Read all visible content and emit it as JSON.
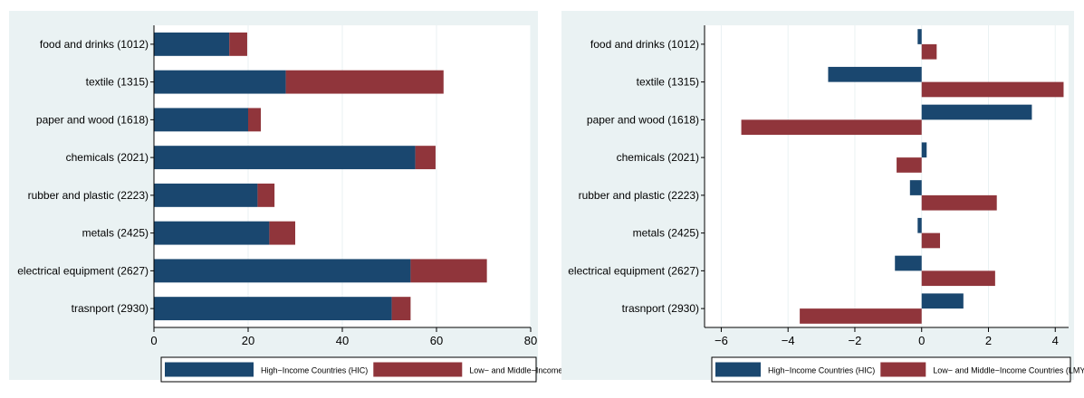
{
  "chart_data": [
    {
      "type": "bar",
      "orientation": "horizontal",
      "stacked": true,
      "categories": [
        "food and drinks (1012)",
        "textile (1315)",
        "paper and wood (1618)",
        "chemicals (2021)",
        "rubber and plastic (2223)",
        "metals (2425)",
        "electrical equipment (2627)",
        "trasnport (2930)"
      ],
      "series": [
        {
          "name": "High−Income Countries (HIC)",
          "color": "#1a476f",
          "values": [
            16,
            28,
            20,
            55.5,
            22,
            24.5,
            54.5,
            50.5
          ]
        },
        {
          "name": "Low− and Middle−Income Countries (LMY)",
          "color": "#90353b",
          "values": [
            3.8,
            33.5,
            2.7,
            4.3,
            3.6,
            5.5,
            16.2,
            4.0
          ]
        }
      ],
      "xlim": [
        0,
        80
      ],
      "xticks": [
        0,
        20,
        40,
        60,
        80
      ],
      "xtick_labels": [
        "0",
        "20",
        "40",
        "60",
        "80"
      ],
      "grid": true,
      "legend": "bottom"
    },
    {
      "type": "bar",
      "orientation": "horizontal",
      "grouped": true,
      "categories": [
        "food and drinks (1012)",
        "textile (1315)",
        "paper and wood (1618)",
        "chemicals (2021)",
        "rubber and plastic (2223)",
        "metals (2425)",
        "electrical equipment (2627)",
        "trasnport (2930)"
      ],
      "series": [
        {
          "name": "High−Income Countries (HIC)",
          "color": "#1a476f",
          "values": [
            -0.12,
            -2.8,
            3.3,
            0.15,
            -0.35,
            -0.12,
            -0.8,
            1.25
          ]
        },
        {
          "name": "Low− and Middle−Income Countries (LMY)",
          "color": "#90353b",
          "values": [
            0.45,
            4.25,
            -5.4,
            -0.75,
            2.25,
            0.55,
            2.2,
            -3.65
          ]
        }
      ],
      "xlim": [
        -6.5,
        4.4
      ],
      "xticks": [
        -6,
        -4,
        -2,
        0,
        2,
        4
      ],
      "xtick_labels": [
        "−6",
        "−4",
        "−2",
        "0",
        "2",
        "4"
      ],
      "grid": true,
      "legend": "bottom"
    }
  ]
}
